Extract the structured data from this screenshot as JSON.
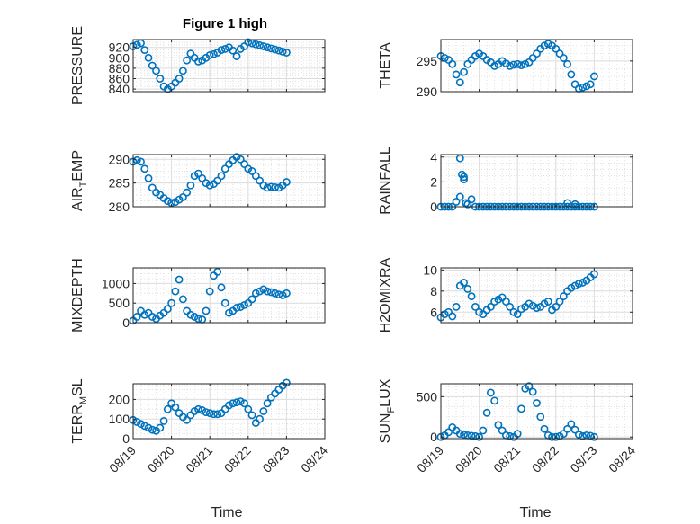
{
  "title": "Figure 1 high",
  "colors": {
    "marker": "#0072BD",
    "axes": "#262626",
    "grid": "#dcdcdc"
  },
  "xaxis": {
    "label": "Time",
    "ticks": [
      0,
      1,
      2,
      3,
      4,
      5
    ],
    "tick_labels": [
      "08/19",
      "08/20",
      "08/21",
      "08/22",
      "08/23",
      "08/24"
    ],
    "range": [
      0,
      5
    ],
    "tick_label_rotation_deg": 45
  },
  "chart_data": [
    {
      "type": "scatter",
      "ylabel": "PRESSURE",
      "ylim": [
        835,
        935
      ],
      "yticks": [
        840,
        860,
        880,
        900,
        920
      ],
      "grid": true,
      "minor_grid": true,
      "x": [
        0.0,
        0.1,
        0.2,
        0.3,
        0.4,
        0.5,
        0.6,
        0.7,
        0.8,
        0.9,
        1.0,
        1.1,
        1.2,
        1.3,
        1.4,
        1.5,
        1.6,
        1.7,
        1.8,
        1.9,
        2.0,
        2.1,
        2.2,
        2.3,
        2.4,
        2.5,
        2.6,
        2.7,
        2.8,
        2.9,
        3.0,
        3.1,
        3.2,
        3.3,
        3.4,
        3.5,
        3.6,
        3.7,
        3.8,
        3.9,
        4.0
      ],
      "y": [
        922,
        925,
        928,
        915,
        900,
        885,
        875,
        860,
        845,
        840,
        845,
        852,
        860,
        875,
        895,
        908,
        900,
        893,
        895,
        900,
        905,
        907,
        910,
        915,
        917,
        920,
        914,
        903,
        917,
        922,
        930,
        928,
        926,
        924,
        922,
        920,
        918,
        916,
        914,
        912,
        910
      ]
    },
    {
      "type": "scatter",
      "ylabel": "THETA",
      "ylim": [
        290,
        298.5
      ],
      "yticks": [
        290,
        295
      ],
      "grid": true,
      "minor_grid": true,
      "x": [
        0.0,
        0.1,
        0.2,
        0.3,
        0.4,
        0.5,
        0.6,
        0.7,
        0.8,
        0.9,
        1.0,
        1.1,
        1.2,
        1.3,
        1.4,
        1.5,
        1.6,
        1.7,
        1.8,
        1.9,
        2.0,
        2.1,
        2.2,
        2.3,
        2.4,
        2.5,
        2.6,
        2.7,
        2.8,
        2.9,
        3.0,
        3.1,
        3.2,
        3.3,
        3.4,
        3.5,
        3.6,
        3.7,
        3.8,
        3.9,
        4.0
      ],
      "y": [
        295.8,
        295.5,
        295.2,
        294.5,
        292.8,
        291.5,
        293.2,
        294.5,
        295.2,
        295.8,
        296.2,
        295.8,
        295.2,
        294.8,
        294.2,
        294.5,
        295.0,
        294.6,
        294.2,
        294.4,
        294.5,
        294.3,
        294.5,
        294.8,
        295.5,
        296.2,
        297.0,
        297.5,
        297.8,
        297.5,
        297.0,
        296.2,
        295.5,
        294.5,
        292.8,
        291.2,
        290.5,
        290.7,
        290.9,
        291.2,
        292.5
      ]
    },
    {
      "type": "scatter",
      "ylabel": "AIR_TEMP",
      "ylim": [
        280,
        291
      ],
      "yticks": [
        280,
        285,
        290
      ],
      "grid": true,
      "minor_grid": true,
      "x": [
        0.0,
        0.1,
        0.2,
        0.3,
        0.4,
        0.5,
        0.6,
        0.7,
        0.8,
        0.9,
        1.0,
        1.1,
        1.2,
        1.3,
        1.4,
        1.5,
        1.6,
        1.7,
        1.8,
        1.9,
        2.0,
        2.1,
        2.2,
        2.3,
        2.4,
        2.5,
        2.6,
        2.7,
        2.8,
        2.9,
        3.0,
        3.1,
        3.2,
        3.3,
        3.4,
        3.5,
        3.6,
        3.7,
        3.8,
        3.9,
        4.0
      ],
      "y": [
        289.5,
        289.8,
        289.5,
        288.0,
        286.0,
        284.0,
        283.0,
        282.5,
        281.8,
        281.2,
        280.8,
        281.0,
        281.5,
        282.0,
        283.0,
        284.5,
        286.5,
        287.0,
        286.0,
        285.0,
        284.5,
        284.8,
        285.5,
        286.5,
        288.0,
        289.0,
        289.8,
        290.5,
        290.0,
        289.0,
        288.0,
        287.5,
        286.5,
        285.5,
        284.5,
        284.0,
        284.2,
        284.1,
        284.0,
        284.5,
        285.2
      ]
    },
    {
      "type": "scatter",
      "ylabel": "RAINFALL",
      "ylim": [
        0,
        4.2
      ],
      "yticks": [
        0,
        2,
        4
      ],
      "grid": true,
      "minor_grid": true,
      "x": [
        0.0,
        0.1,
        0.2,
        0.3,
        0.4,
        0.5,
        0.6,
        0.7,
        0.8,
        0.9,
        1.0,
        1.1,
        1.2,
        1.3,
        1.4,
        1.5,
        1.6,
        1.7,
        1.8,
        1.9,
        2.0,
        2.1,
        2.2,
        2.3,
        2.4,
        2.5,
        2.6,
        2.7,
        2.8,
        2.9,
        3.0,
        3.1,
        3.2,
        3.3,
        3.4,
        3.5,
        3.6,
        3.7,
        3.8,
        3.9,
        4.0,
        0.5,
        0.55,
        0.6,
        0.65,
        0.7,
        3.3,
        3.5
      ],
      "y": [
        0,
        0,
        0,
        0,
        0.4,
        0.8,
        2.4,
        0.2,
        0.6,
        0,
        0,
        0,
        0,
        0,
        0,
        0,
        0,
        0,
        0,
        0,
        0,
        0,
        0,
        0,
        0,
        0,
        0,
        0,
        0,
        0,
        0,
        0,
        0,
        0,
        0,
        0,
        0,
        0,
        0,
        0,
        0,
        3.9,
        2.6,
        2.2,
        0.3,
        0.2,
        0.3,
        0.2
      ]
    },
    {
      "type": "scatter",
      "ylabel": "MIXDEPTH",
      "ylim": [
        0,
        1400
      ],
      "yticks": [
        0,
        500,
        1000
      ],
      "grid": true,
      "minor_grid": true,
      "x": [
        0.0,
        0.1,
        0.2,
        0.3,
        0.4,
        0.5,
        0.6,
        0.7,
        0.8,
        0.9,
        1.0,
        1.1,
        1.2,
        1.3,
        1.4,
        1.5,
        1.6,
        1.7,
        1.8,
        1.9,
        2.0,
        2.1,
        2.2,
        2.3,
        2.4,
        2.5,
        2.6,
        2.7,
        2.8,
        2.9,
        3.0,
        3.1,
        3.2,
        3.3,
        3.4,
        3.5,
        3.6,
        3.7,
        3.8,
        3.9,
        4.0
      ],
      "y": [
        50,
        150,
        300,
        200,
        250,
        150,
        100,
        180,
        250,
        350,
        500,
        800,
        1100,
        600,
        300,
        200,
        150,
        100,
        80,
        300,
        800,
        1200,
        1300,
        900,
        500,
        250,
        300,
        380,
        400,
        450,
        500,
        600,
        750,
        800,
        850,
        800,
        780,
        750,
        720,
        700,
        750
      ]
    },
    {
      "type": "scatter",
      "ylabel": "H2OMIXRA",
      "ylim": [
        5,
        10.2
      ],
      "yticks": [
        6,
        8,
        10
      ],
      "grid": true,
      "minor_grid": true,
      "x": [
        0.0,
        0.1,
        0.2,
        0.3,
        0.4,
        0.5,
        0.6,
        0.7,
        0.8,
        0.9,
        1.0,
        1.1,
        1.2,
        1.3,
        1.4,
        1.5,
        1.6,
        1.7,
        1.8,
        1.9,
        2.0,
        2.1,
        2.2,
        2.3,
        2.4,
        2.5,
        2.6,
        2.7,
        2.8,
        2.9,
        3.0,
        3.1,
        3.2,
        3.3,
        3.4,
        3.5,
        3.6,
        3.7,
        3.8,
        3.9,
        4.0
      ],
      "y": [
        5.5,
        5.8,
        6.0,
        5.6,
        6.5,
        8.5,
        8.8,
        8.2,
        7.5,
        6.5,
        6.0,
        5.8,
        6.2,
        6.5,
        7.0,
        7.2,
        7.4,
        7.0,
        6.5,
        6.0,
        5.8,
        6.3,
        6.5,
        6.8,
        6.6,
        6.4,
        6.5,
        6.8,
        7.0,
        6.2,
        6.5,
        7.0,
        7.5,
        8.0,
        8.3,
        8.5,
        8.7,
        8.8,
        9.0,
        9.3,
        9.6
      ]
    },
    {
      "type": "scatter",
      "ylabel": "TERR_MSL",
      "ylim": [
        0,
        280
      ],
      "yticks": [
        0,
        100,
        200
      ],
      "grid": true,
      "minor_grid": true,
      "x": [
        0.0,
        0.1,
        0.2,
        0.3,
        0.4,
        0.5,
        0.6,
        0.7,
        0.8,
        0.9,
        1.0,
        1.1,
        1.2,
        1.3,
        1.4,
        1.5,
        1.6,
        1.7,
        1.8,
        1.9,
        2.0,
        2.1,
        2.2,
        2.3,
        2.4,
        2.5,
        2.6,
        2.7,
        2.8,
        2.9,
        3.0,
        3.1,
        3.2,
        3.3,
        3.4,
        3.5,
        3.6,
        3.7,
        3.8,
        3.9,
        4.0
      ],
      "y": [
        95,
        85,
        75,
        65,
        55,
        45,
        40,
        55,
        90,
        150,
        180,
        160,
        130,
        110,
        95,
        120,
        140,
        150,
        145,
        135,
        130,
        125,
        125,
        130,
        150,
        170,
        180,
        185,
        190,
        180,
        150,
        120,
        80,
        100,
        140,
        180,
        210,
        230,
        250,
        270,
        285
      ]
    },
    {
      "type": "scatter",
      "ylabel": "SUN_FLUX",
      "ylim": [
        -20,
        660
      ],
      "yticks": [
        0,
        500
      ],
      "grid": true,
      "minor_grid": true,
      "x": [
        0.0,
        0.1,
        0.2,
        0.3,
        0.4,
        0.5,
        0.6,
        0.7,
        0.8,
        0.9,
        1.0,
        1.1,
        1.2,
        1.3,
        1.4,
        1.5,
        1.6,
        1.7,
        1.8,
        1.9,
        2.0,
        2.1,
        2.2,
        2.3,
        2.4,
        2.5,
        2.6,
        2.7,
        2.8,
        2.9,
        3.0,
        3.1,
        3.2,
        3.3,
        3.4,
        3.5,
        3.6,
        3.7,
        3.8,
        3.9,
        4.0
      ],
      "y": [
        0,
        20,
        60,
        120,
        80,
        40,
        30,
        20,
        15,
        10,
        0,
        80,
        300,
        550,
        450,
        150,
        80,
        20,
        10,
        0,
        40,
        350,
        600,
        630,
        560,
        420,
        250,
        100,
        20,
        0,
        0,
        10,
        40,
        100,
        160,
        90,
        30,
        10,
        20,
        15,
        0
      ]
    }
  ]
}
